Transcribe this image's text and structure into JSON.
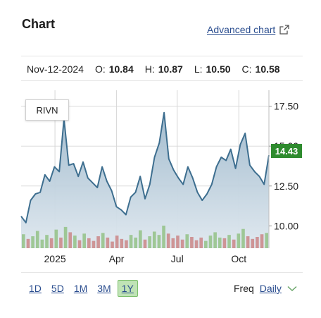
{
  "header": {
    "title": "Chart",
    "advanced_link": "Advanced chart"
  },
  "quote": {
    "date": "Nov-12-2024",
    "open_label": "O:",
    "open": "10.84",
    "high_label": "H:",
    "high": "10.87",
    "low_label": "L:",
    "low": "10.50",
    "close_label": "C:",
    "close": "10.58"
  },
  "chart_data": {
    "type": "area",
    "ticker": "RIVN",
    "last_price": "14.43",
    "y_ticks": [
      "17.50",
      "15.00",
      "12.50",
      "10.00"
    ],
    "ylim": [
      8.6,
      18.5
    ],
    "x_ticks": [
      {
        "label": "2025",
        "week": 7.2
      },
      {
        "label": "Apr",
        "week": 20.3
      },
      {
        "label": "Jul",
        "week": 33.2
      },
      {
        "label": "Oct",
        "week": 46.3
      }
    ],
    "grid": true,
    "x_week_range": [
      0,
      52.7
    ],
    "series": [
      {
        "values": [
          10.6,
          10.2,
          11.6,
          12.0,
          12.1,
          13.2,
          12.8,
          13.7,
          13.4,
          16.7,
          13.8,
          13.9,
          13.1,
          14.0,
          13.0,
          12.7,
          12.4,
          13.7,
          12.8,
          12.2,
          11.2,
          11.0,
          10.7,
          11.8,
          12.1,
          13.1,
          11.7,
          12.6,
          14.3,
          15.2,
          17.1,
          14.2,
          13.5,
          13.0,
          12.6,
          13.7,
          13.0,
          12.1,
          11.6,
          12.0,
          12.6,
          13.7,
          14.3,
          14.1,
          14.8,
          13.6,
          15.1,
          15.8,
          13.8,
          13.4,
          13.1,
          12.6,
          14.43
        ]
      }
    ],
    "volume": [
      2.1,
      1.4,
      1.8,
      2.6,
      1.3,
      2.0,
      1.5,
      2.8,
      1.6,
      3.2,
      2.4,
      1.9,
      1.2,
      2.2,
      1.5,
      1.1,
      1.8,
      2.3,
      1.6,
      1.0,
      1.9,
      1.4,
      1.2,
      2.0,
      1.6,
      2.7,
      1.3,
      1.8,
      2.5,
      2.0,
      3.4,
      2.2,
      1.5,
      1.9,
      1.3,
      2.1,
      1.7,
      1.2,
      1.6,
      1.1,
      1.9,
      2.4,
      1.6,
      1.5,
      2.0,
      1.3,
      2.2,
      2.9,
      1.8,
      1.4,
      1.7,
      2.1,
      2.3
    ]
  },
  "ranges": {
    "items": [
      "1D",
      "5D",
      "1M",
      "3M",
      "1Y"
    ],
    "active": "1Y"
  },
  "freq": {
    "label": "Freq",
    "value": "Daily"
  },
  "colors": {
    "line": "#3d6e8f",
    "area_top": "#9fb9cc",
    "area_bottom": "#dfe8ef",
    "vol_up": "#8fbf7f",
    "vol_down": "#c98080",
    "badge": "#2e8b2e",
    "link": "#2a4d8f"
  }
}
